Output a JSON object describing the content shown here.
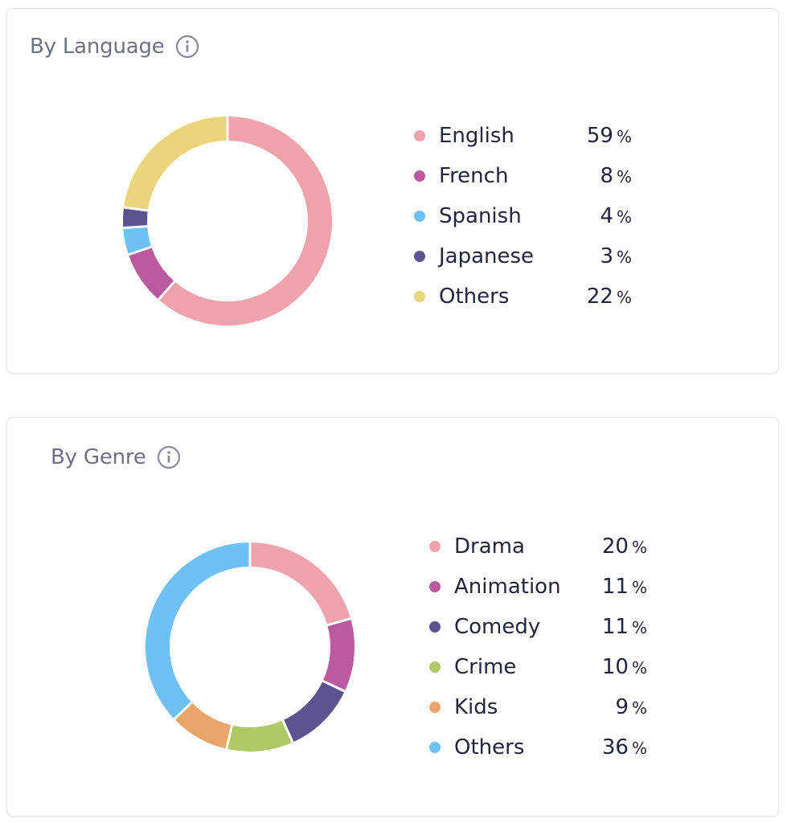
{
  "chart_data": [
    {
      "type": "pie",
      "title": "By Language",
      "categories": [
        "English",
        "French",
        "Spanish",
        "Japanese",
        "Others"
      ],
      "values": [
        59,
        8,
        4,
        3,
        22
      ],
      "colors": [
        "#f0a2ad",
        "#bb5a9e",
        "#6ec0f6",
        "#5b5491",
        "#ebd47d"
      ],
      "unit": "%",
      "legend_position": "right",
      "info_icon": "info-circle-icon"
    },
    {
      "type": "pie",
      "title": "By Genre",
      "categories": [
        "Drama",
        "Animation",
        "Comedy",
        "Crime",
        "Kids",
        "Others"
      ],
      "values": [
        20,
        11,
        11,
        10,
        9,
        36
      ],
      "colors": [
        "#f0a2ad",
        "#bb5a9e",
        "#5b5491",
        "#b0c865",
        "#eaa56b",
        "#6ec0f6"
      ],
      "unit": "%",
      "legend_position": "right",
      "info_icon": "info-circle-icon"
    }
  ]
}
